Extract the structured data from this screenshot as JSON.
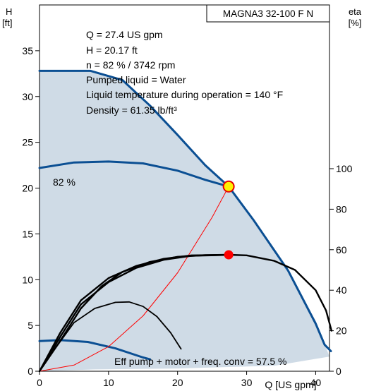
{
  "chart_data": {
    "type": "line",
    "title": "MAGNA3 32-100 F N",
    "left_axis": {
      "label_line1": "H",
      "label_line2": "[ft]",
      "ylim": [
        0,
        40
      ],
      "ticks": [
        0,
        5,
        10,
        15,
        20,
        25,
        30,
        35
      ]
    },
    "right_axis": {
      "label_line1": "eta",
      "label_line2": "[%]",
      "ylim": [
        0,
        100
      ],
      "ticks": [
        0,
        20,
        40,
        60,
        80,
        100
      ]
    },
    "x_axis": {
      "xlim": [
        0,
        42
      ],
      "ticks": [
        0,
        10,
        20,
        30,
        40
      ],
      "tick_labels": [
        "0",
        "10",
        "20",
        "30",
        "40"
      ],
      "end_label": "Q [US gpm]"
    },
    "info_lines": [
      "Q = 27.4 US gpm",
      "H = 20.17 ft",
      "n = 82 % / 3742 rpm",
      "Pumped liquid = Water",
      "Liquid temperature during operation = 140 °F",
      "Density = 61.35 lb/ft³"
    ],
    "curve_label": "82 %",
    "eff_label": "Eff pump + motor + freq. conv = 57.5 %",
    "operating_point": {
      "q": 27.4,
      "h": 20.17
    },
    "efficiency_point": {
      "q": 27.4,
      "eta": 57.5
    },
    "series": [
      {
        "kind": "operating-range",
        "axis": "left",
        "color": "#cfdbe6",
        "points": [
          [
            0,
            32.8
          ],
          [
            7.4,
            32.8
          ],
          [
            12,
            31.8
          ],
          [
            16,
            29
          ],
          [
            20,
            25.8
          ],
          [
            24,
            22.5
          ],
          [
            27.4,
            20.17
          ],
          [
            31,
            16.5
          ],
          [
            36,
            11
          ],
          [
            40,
            5.5
          ],
          [
            42,
            1.6
          ],
          [
            34,
            0.6
          ],
          [
            20,
            0.3
          ],
          [
            8,
            0.2
          ],
          [
            0,
            0
          ]
        ]
      },
      {
        "kind": "max-curve",
        "axis": "left",
        "color": "#0b4f93",
        "points": [
          [
            0,
            32.8
          ],
          [
            7.4,
            32.8
          ],
          [
            12,
            31.8
          ],
          [
            16,
            29
          ],
          [
            20,
            25.8
          ],
          [
            24,
            22.5
          ],
          [
            27.4,
            20.17
          ],
          [
            31,
            16.5
          ],
          [
            36,
            11
          ],
          [
            40,
            5.2
          ],
          [
            41.3,
            2.9
          ],
          [
            42.2,
            2.2
          ]
        ]
      },
      {
        "kind": "speed-curve-82",
        "axis": "left",
        "color": "#0b4f93",
        "points": [
          [
            0,
            22.2
          ],
          [
            5,
            22.8
          ],
          [
            10,
            22.9
          ],
          [
            15,
            22.7
          ],
          [
            20,
            21.9
          ],
          [
            24,
            20.9
          ],
          [
            27.4,
            20.17
          ]
        ]
      },
      {
        "kind": "min-curve",
        "axis": "left",
        "color": "#0b4f93",
        "points": [
          [
            0,
            3.3
          ],
          [
            3,
            3.4
          ],
          [
            7,
            3.2
          ],
          [
            11,
            2.5
          ],
          [
            15,
            1.5
          ],
          [
            16,
            1.3
          ]
        ]
      },
      {
        "kind": "system-curve",
        "axis": "left",
        "color": "#ff0000",
        "points": [
          [
            0,
            0
          ],
          [
            5,
            0.67
          ],
          [
            10,
            2.69
          ],
          [
            15,
            6.05
          ],
          [
            20,
            10.75
          ],
          [
            25,
            16.8
          ],
          [
            27.4,
            20.17
          ]
        ]
      },
      {
        "kind": "eff-max",
        "axis": "right",
        "color": "#000000",
        "points": [
          [
            0,
            0
          ],
          [
            3,
            15
          ],
          [
            6,
            31
          ],
          [
            9,
            42
          ],
          [
            12,
            49
          ],
          [
            16,
            54
          ],
          [
            20,
            56.5
          ],
          [
            24,
            57.3
          ],
          [
            27.4,
            57.5
          ],
          [
            30,
            57.2
          ],
          [
            34,
            54.5
          ],
          [
            37,
            50
          ],
          [
            40,
            40
          ],
          [
            41.5,
            30
          ],
          [
            42.3,
            20
          ]
        ]
      },
      {
        "kind": "eff-mid",
        "axis": "right",
        "color": "#000000",
        "points": [
          [
            0,
            0
          ],
          [
            3,
            17
          ],
          [
            6,
            33
          ],
          [
            10,
            44
          ],
          [
            14,
            51
          ],
          [
            18,
            55
          ],
          [
            22,
            57
          ],
          [
            26,
            57.3
          ],
          [
            27.4,
            57.5
          ]
        ]
      },
      {
        "kind": "eff-mid2",
        "axis": "right",
        "color": "#000000",
        "points": [
          [
            0,
            0
          ],
          [
            3,
            19
          ],
          [
            6,
            35
          ],
          [
            10,
            46
          ],
          [
            14,
            52
          ],
          [
            18,
            55.5
          ],
          [
            22,
            57.2
          ],
          [
            26,
            57.4
          ],
          [
            27.4,
            57.5
          ]
        ]
      },
      {
        "kind": "eff-min",
        "axis": "right",
        "color": "#000000",
        "points": [
          [
            0,
            0
          ],
          [
            2,
            10
          ],
          [
            5,
            24
          ],
          [
            8,
            31
          ],
          [
            11,
            34
          ],
          [
            13,
            34.2
          ],
          [
            15,
            32
          ],
          [
            17,
            27
          ],
          [
            19,
            19
          ],
          [
            20.5,
            11
          ]
        ]
      }
    ]
  }
}
